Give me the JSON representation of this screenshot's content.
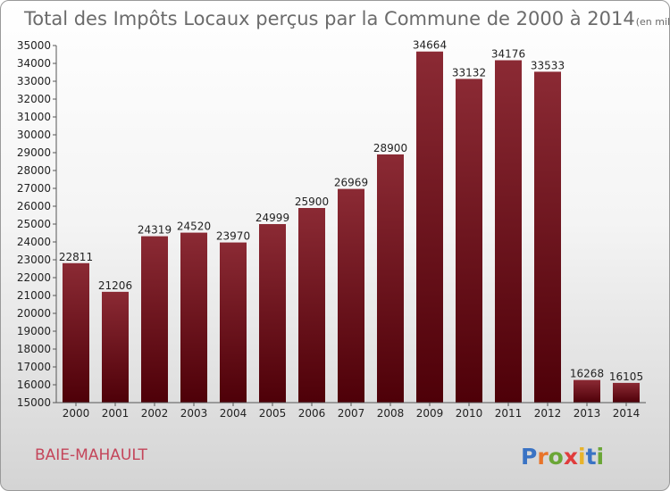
{
  "chart_data": {
    "type": "bar",
    "title": "Total des Impôts Locaux perçus par la Commune de 2000 à 2014",
    "unit_note": "(en milliers d'€)",
    "categories": [
      "2000",
      "2001",
      "2002",
      "2003",
      "2004",
      "2005",
      "2006",
      "2007",
      "2008",
      "2009",
      "2010",
      "2011",
      "2012",
      "2013",
      "2014"
    ],
    "values": [
      22811,
      21206,
      24319,
      24520,
      23970,
      24999,
      25900,
      26969,
      28900,
      34664,
      33132,
      34176,
      33533,
      16268,
      16105
    ],
    "ylim": [
      15000,
      35000
    ],
    "ytick_step": 1000,
    "xlabel": "",
    "ylabel": "",
    "grid": false,
    "bar_color": "#7a1a26"
  },
  "commune": "BAIE-MAHAULT",
  "logo": {
    "text": "Proxiti",
    "letter_colors": [
      "#3a73c4",
      "#e8742a",
      "#6aa636",
      "#e03c3c",
      "#e8b32a",
      "#3a73c4",
      "#6aa636"
    ]
  }
}
